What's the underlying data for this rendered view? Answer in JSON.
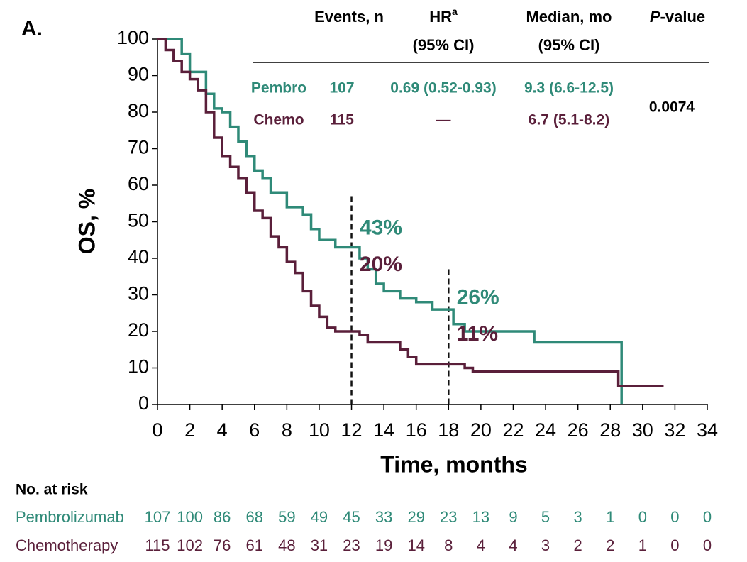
{
  "chart_data": {
    "type": "line",
    "step": "post",
    "panel_label": "A.",
    "x_label": "Time, months",
    "y_label": "OS, %",
    "xlim": [
      0,
      34
    ],
    "xticks": [
      0,
      2,
      4,
      6,
      8,
      10,
      12,
      14,
      16,
      18,
      20,
      22,
      24,
      26,
      28,
      30,
      32,
      34
    ],
    "ylim": [
      0,
      100
    ],
    "yticks": [
      0,
      10,
      20,
      30,
      40,
      50,
      60,
      70,
      80,
      90,
      100
    ],
    "series": [
      {
        "name": "Pembro",
        "color": "#2f8a78",
        "x": [
          0,
          1.5,
          2,
          3,
          3.5,
          4,
          4.5,
          5,
          5.5,
          6,
          6.5,
          7,
          8,
          9,
          9.5,
          10,
          11,
          12.5,
          13,
          13.5,
          14,
          15,
          16,
          17,
          18.3,
          19,
          23.3,
          28.7
        ],
        "values": [
          100,
          96,
          91,
          85,
          81,
          80,
          76,
          72,
          68,
          64,
          62,
          58,
          54,
          52,
          48,
          45,
          43,
          40,
          37,
          33,
          31,
          29,
          28,
          26,
          22,
          20,
          17,
          0
        ]
      },
      {
        "name": "Chemo",
        "color": "#5a1f3a",
        "x": [
          0,
          0.5,
          1,
          1.5,
          2,
          2.5,
          3,
          3.5,
          4,
          4.5,
          5,
          5.5,
          6,
          6.5,
          7,
          7.5,
          8,
          8.5,
          9,
          9.5,
          10,
          10.5,
          11,
          12.5,
          13,
          15,
          15.5,
          16,
          19,
          19.5,
          28.5,
          31.3
        ],
        "values": [
          100,
          97,
          94,
          91,
          89,
          86,
          80,
          73,
          68,
          65,
          62,
          58,
          53,
          51,
          46,
          43,
          39,
          36,
          31,
          27,
          24,
          21,
          20,
          19,
          17,
          15,
          13,
          11,
          10,
          9,
          5,
          5
        ]
      }
    ],
    "reference_lines": [
      {
        "x": 12,
        "y": 57
      },
      {
        "x": 18,
        "y": 37
      }
    ],
    "annotations": [
      "43%",
      "20%",
      "26%",
      "11%"
    ],
    "summary_table": {
      "headers": {
        "events": "Events, n",
        "hr": "HR",
        "hr_sup": "a",
        "hr_ci": "(95% CI)",
        "median": "Median, mo",
        "median_ci": "(95% CI)",
        "p_italic": "P",
        "p_rest": "-value"
      },
      "rows": [
        {
          "events": "107",
          "hr": "0.69 (0.52-0.93)",
          "median": "9.3 (6.6-12.5)"
        },
        {
          "events": "115",
          "hr": "—",
          "median": "6.7 (5.1-8.2)"
        }
      ],
      "p_value": "0.0074"
    },
    "risk_table": {
      "title": "No. at risk",
      "rows": [
        {
          "name": "Pembrolizumab",
          "values": [
            107,
            100,
            86,
            68,
            59,
            49,
            45,
            33,
            29,
            23,
            13,
            9,
            5,
            3,
            1,
            0,
            0,
            0
          ]
        },
        {
          "name": "Chemotherapy",
          "values": [
            115,
            102,
            76,
            61,
            48,
            31,
            23,
            19,
            14,
            8,
            4,
            4,
            3,
            2,
            2,
            1,
            0,
            0
          ]
        }
      ]
    }
  }
}
